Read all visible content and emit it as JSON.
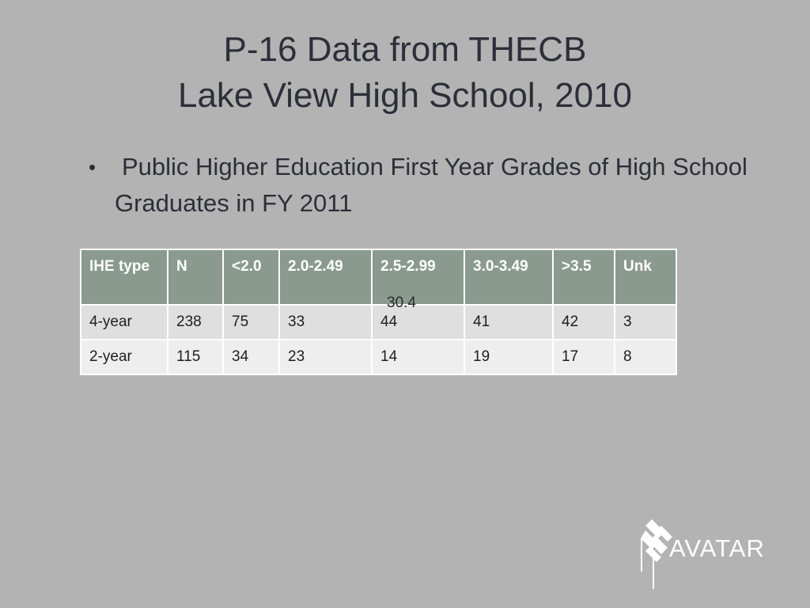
{
  "slide": {
    "title_line1": "P-16 Data from THECB",
    "title_line2": "Lake View High School, 2010",
    "bullet_text": "Public Higher Education First Year Grades of High School Graduates in FY 2011",
    "stray_value": "30.4"
  },
  "table": {
    "headers": [
      "IHE type",
      "N",
      "<2.0",
      "2.0-2.49",
      "2.5-2.99",
      "3.0-3.49",
      ">3.5",
      "Unk"
    ],
    "rows": [
      [
        "4-year",
        "238",
        "75",
        "33",
        "44",
        "41",
        "42",
        "3"
      ],
      [
        "2-year",
        "115",
        "34",
        "23",
        "14",
        "19",
        "17",
        "8"
      ]
    ]
  },
  "logo": {
    "text": "AVATAR"
  },
  "colors": {
    "background": "#b3b3b3",
    "header_fill": "#8a9a8e",
    "row_fill_1": "#dedfde",
    "row_fill_2": "#edeeed"
  }
}
